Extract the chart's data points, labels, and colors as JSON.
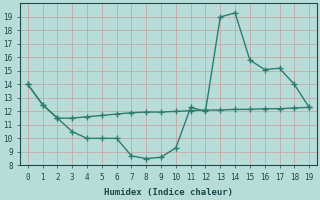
{
  "xlabel": "Humidex (Indice chaleur)",
  "line1_x": [
    0,
    1,
    2,
    3,
    4,
    5,
    6,
    7,
    8,
    9,
    10,
    11,
    12,
    13,
    14,
    15,
    16,
    17,
    18,
    19
  ],
  "line1_y": [
    14,
    12.5,
    11.5,
    10.5,
    10,
    10,
    10,
    8.7,
    8.5,
    8.6,
    9.3,
    12.3,
    12,
    19,
    19.3,
    15.8,
    15.1,
    15.2,
    14,
    12.3
  ],
  "line2_x": [
    0,
    1,
    2,
    3,
    4,
    5,
    6,
    7,
    8,
    9,
    10,
    11,
    12,
    13,
    14,
    15,
    16,
    17,
    18,
    19
  ],
  "line2_y": [
    14,
    12.5,
    11.5,
    11.5,
    11.6,
    11.7,
    11.8,
    11.9,
    11.95,
    11.95,
    12.0,
    12.05,
    12.1,
    12.1,
    12.15,
    12.15,
    12.2,
    12.2,
    12.25,
    12.3
  ],
  "line_color": "#2d7d6e",
  "bg_color": "#b8ddd9",
  "grid_color": "#c8a8a8",
  "ylim": [
    8,
    20
  ],
  "xlim": [
    -0.5,
    19.5
  ],
  "yticks": [
    8,
    9,
    10,
    11,
    12,
    13,
    14,
    15,
    16,
    17,
    18,
    19
  ],
  "xticks": [
    0,
    1,
    2,
    3,
    4,
    5,
    6,
    7,
    8,
    9,
    10,
    11,
    12,
    13,
    14,
    15,
    16,
    17,
    18,
    19
  ],
  "marker": "+",
  "markersize": 4,
  "linewidth": 1.0,
  "tick_fontsize": 5.5,
  "xlabel_fontsize": 6.5
}
